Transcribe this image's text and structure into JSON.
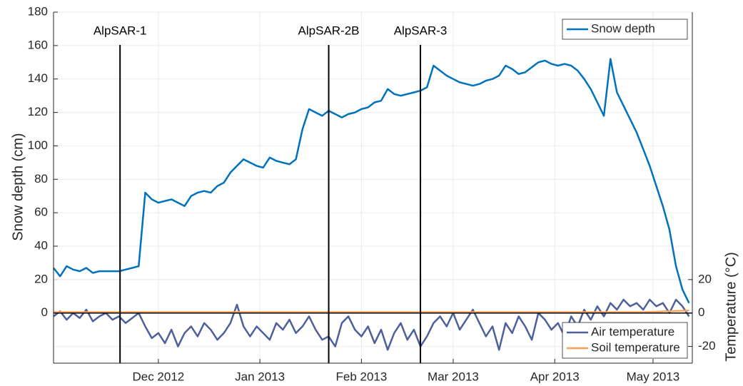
{
  "chart_data": {
    "type": "line",
    "y_label": "Snow depth (cm)",
    "y2_label": "Temperature (°C)",
    "x": [
      0,
      2,
      4,
      6,
      8,
      10,
      12,
      14,
      16,
      18,
      20,
      22,
      24,
      26,
      28,
      30,
      32,
      34,
      36,
      38,
      40,
      42,
      44,
      46,
      48,
      50,
      52,
      54,
      56,
      58,
      60,
      62,
      64,
      66,
      68,
      70,
      72,
      74,
      76,
      78,
      80,
      82,
      84,
      86,
      88,
      90,
      92,
      94,
      96,
      98,
      100,
      102,
      104,
      106,
      108,
      110,
      112,
      114,
      116,
      118,
      120,
      122,
      124,
      126,
      128,
      130,
      132,
      134,
      136,
      138,
      140,
      142,
      144,
      146,
      148,
      150,
      152,
      154,
      156,
      158,
      160,
      162,
      164,
      166,
      168,
      170,
      172,
      174,
      176,
      178,
      180,
      182,
      184,
      186,
      188,
      190,
      192,
      194
    ],
    "xlim": [
      0,
      195
    ],
    "xticks": [
      {
        "value": 32,
        "label": "Dec 2012"
      },
      {
        "value": 63,
        "label": "Jan 2013"
      },
      {
        "value": 94,
        "label": "Feb 2013"
      },
      {
        "value": 122,
        "label": "Mar 2013"
      },
      {
        "value": 153,
        "label": "Apr 2013"
      },
      {
        "value": 183,
        "label": "May 2013"
      }
    ],
    "ylim": [
      -30,
      180
    ],
    "yticks": [
      0,
      20,
      40,
      60,
      80,
      100,
      120,
      140,
      160,
      180
    ],
    "y2lim": [
      -30,
      180
    ],
    "y2ticks": [
      -20,
      0,
      20
    ],
    "grid": true,
    "reference_line": 0,
    "legend_location": {
      "y": "northeast",
      "y2": "southeast"
    },
    "series": [
      {
        "name": "Snow depth",
        "color": "#0072bd",
        "axis": "y",
        "values": [
          27,
          22,
          28,
          26,
          25,
          27,
          24,
          25,
          25,
          25,
          25,
          26,
          27,
          28,
          72,
          68,
          66,
          67,
          68,
          66,
          64,
          70,
          72,
          73,
          72,
          76,
          78,
          84,
          88,
          92,
          90,
          88,
          87,
          93,
          91,
          90,
          89,
          92,
          110,
          122,
          120,
          118,
          121,
          119,
          117,
          119,
          120,
          122,
          123,
          126,
          127,
          134,
          131,
          130,
          131,
          132,
          133,
          135,
          148,
          145,
          142,
          140,
          138,
          137,
          136,
          137,
          139,
          140,
          142,
          148,
          146,
          143,
          144,
          147,
          150,
          151,
          149,
          148,
          149,
          148,
          145,
          140,
          134,
          126,
          118,
          152,
          132,
          124,
          116,
          108,
          98,
          88,
          76,
          64,
          50,
          28,
          14,
          6
        ]
      },
      {
        "name": "Air temperature",
        "color": "#4d5f9c",
        "axis": "y2",
        "values": [
          -2,
          1,
          -4,
          0,
          -3,
          2,
          -5,
          -2,
          0,
          -4,
          -2,
          -6,
          -3,
          0,
          -8,
          -15,
          -12,
          -18,
          -10,
          -20,
          -12,
          -8,
          -14,
          -6,
          -10,
          -16,
          -12,
          -6,
          5,
          -8,
          -14,
          -8,
          -12,
          -16,
          -6,
          -10,
          -4,
          -12,
          -8,
          -2,
          -10,
          -16,
          -14,
          -20,
          -6,
          -2,
          -10,
          -14,
          -8,
          -18,
          -10,
          -22,
          -12,
          -6,
          -16,
          -10,
          -20,
          -14,
          -6,
          -2,
          -8,
          0,
          -10,
          -4,
          2,
          -6,
          -14,
          -8,
          -22,
          -6,
          -12,
          -2,
          -8,
          -16,
          0,
          -4,
          -10,
          -6,
          -14,
          -2,
          -8,
          2,
          -4,
          4,
          -2,
          6,
          2,
          8,
          4,
          6,
          2,
          8,
          4,
          6,
          0,
          8,
          4,
          -2
        ]
      },
      {
        "name": "Soil temperature",
        "color": "#f7a35c",
        "axis": "y2",
        "x": [
          0,
          180,
          194
        ],
        "values": [
          0.5,
          0.5,
          1.5
        ]
      }
    ],
    "annotations": [
      {
        "label": "AlpSAR-1",
        "x": 20.3
      },
      {
        "label": "AlpSAR-2B",
        "x": 84
      },
      {
        "label": "AlpSAR-3",
        "x": 112
      }
    ]
  }
}
